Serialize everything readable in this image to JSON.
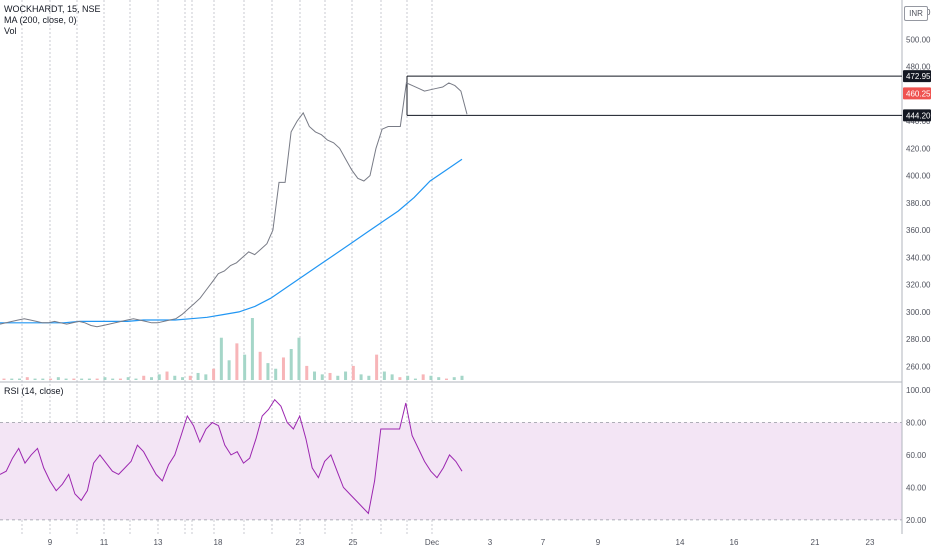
{
  "legend": {
    "symbol": "WOCKHARDT, 15, NSE",
    "ma": "MA (200, close, 0)",
    "vol": "Vol",
    "rsi": "RSI (14, close)"
  },
  "currency": "INR",
  "colors": {
    "price": "#787b86",
    "ma": "#2196f3",
    "rsi_line": "#9c27b0",
    "rsi_band": "#f3e5f5",
    "last_price_badge": "#ef5350",
    "vol_up": "#a5d6c8",
    "vol_down": "#f7b5b8",
    "grid_dash": "#b2b5be"
  },
  "chart_data": [
    {
      "type": "line",
      "panel": "price",
      "ylim": [
        250,
        520
      ],
      "y_ticks": [
        "260.00",
        "280.00",
        "300.00",
        "320.00",
        "340.00",
        "360.00",
        "380.00",
        "400.00",
        "420.00",
        "440.00",
        "460.00",
        "480.00",
        "500.00",
        "520.00"
      ],
      "x_ticks": [
        "9",
        "11",
        "13",
        "18",
        "23",
        "25",
        "Dec",
        "3",
        "7",
        "9",
        "14",
        "16",
        "21",
        "23"
      ],
      "series": [
        {
          "name": "WOCKHARDT, 15, NSE",
          "values": [
            291,
            292,
            293,
            294,
            295,
            294,
            293,
            292,
            292,
            293,
            292,
            291,
            292,
            293,
            292,
            290,
            289,
            290,
            291,
            292,
            293,
            294,
            295,
            294,
            293,
            292,
            292,
            293,
            294,
            295,
            298,
            302,
            306,
            310,
            316,
            322,
            328,
            330,
            334,
            336,
            340,
            344,
            342,
            346,
            350,
            360,
            395,
            395,
            432,
            440,
            446,
            436,
            432,
            430,
            426,
            424,
            420,
            412,
            404,
            398,
            396,
            400,
            420,
            434,
            436,
            436,
            436,
            468,
            466,
            464,
            462,
            463,
            464,
            465,
            468,
            466,
            462,
            445
          ]
        },
        {
          "name": "MA (200, close, 0)",
          "values": [
            292,
            292,
            292,
            292,
            292,
            293,
            293,
            293,
            293,
            294,
            294,
            294,
            295,
            296,
            298,
            300,
            304,
            310,
            318,
            326,
            334,
            342,
            350,
            358,
            366,
            374,
            384,
            396,
            404,
            412
          ]
        }
      ],
      "levels": [
        {
          "label": "472.95",
          "value": 472.95
        },
        {
          "label": "444.20",
          "value": 444.2
        }
      ],
      "last_price": {
        "label": "460.25",
        "value": 460.25
      }
    },
    {
      "type": "line",
      "panel": "rsi",
      "ylim": [
        15,
        100
      ],
      "y_ticks": [
        "20.00",
        "40.00",
        "60.00",
        "80.00",
        "100.00"
      ],
      "band": [
        20,
        80
      ],
      "series": [
        {
          "name": "RSI (14, close)",
          "values": [
            48,
            50,
            58,
            64,
            55,
            60,
            64,
            52,
            44,
            38,
            42,
            48,
            36,
            32,
            38,
            55,
            60,
            55,
            50,
            48,
            52,
            56,
            66,
            62,
            55,
            48,
            44,
            54,
            60,
            72,
            84,
            78,
            68,
            76,
            80,
            78,
            66,
            60,
            62,
            55,
            58,
            70,
            84,
            88,
            94,
            90,
            80,
            76,
            84,
            70,
            52,
            46,
            56,
            60,
            50,
            40,
            36,
            32,
            28,
            24,
            44,
            76,
            76,
            76,
            76,
            92,
            72,
            64,
            56,
            50,
            46,
            52,
            60,
            56,
            50
          ]
        }
      ]
    },
    {
      "type": "bar",
      "panel": "volume",
      "values": [
        1,
        1,
        1,
        2,
        1,
        1,
        1,
        2,
        1,
        1,
        1,
        1,
        1,
        2,
        1,
        1,
        2,
        1,
        3,
        2,
        4,
        6,
        3,
        2,
        3,
        5,
        4,
        8,
        30,
        14,
        26,
        18,
        44,
        20,
        12,
        8,
        16,
        22,
        30,
        10,
        6,
        4,
        5,
        3,
        6,
        10,
        4,
        3,
        18,
        6,
        4,
        2,
        3,
        1,
        4,
        3,
        2,
        1,
        2,
        3
      ]
    }
  ]
}
